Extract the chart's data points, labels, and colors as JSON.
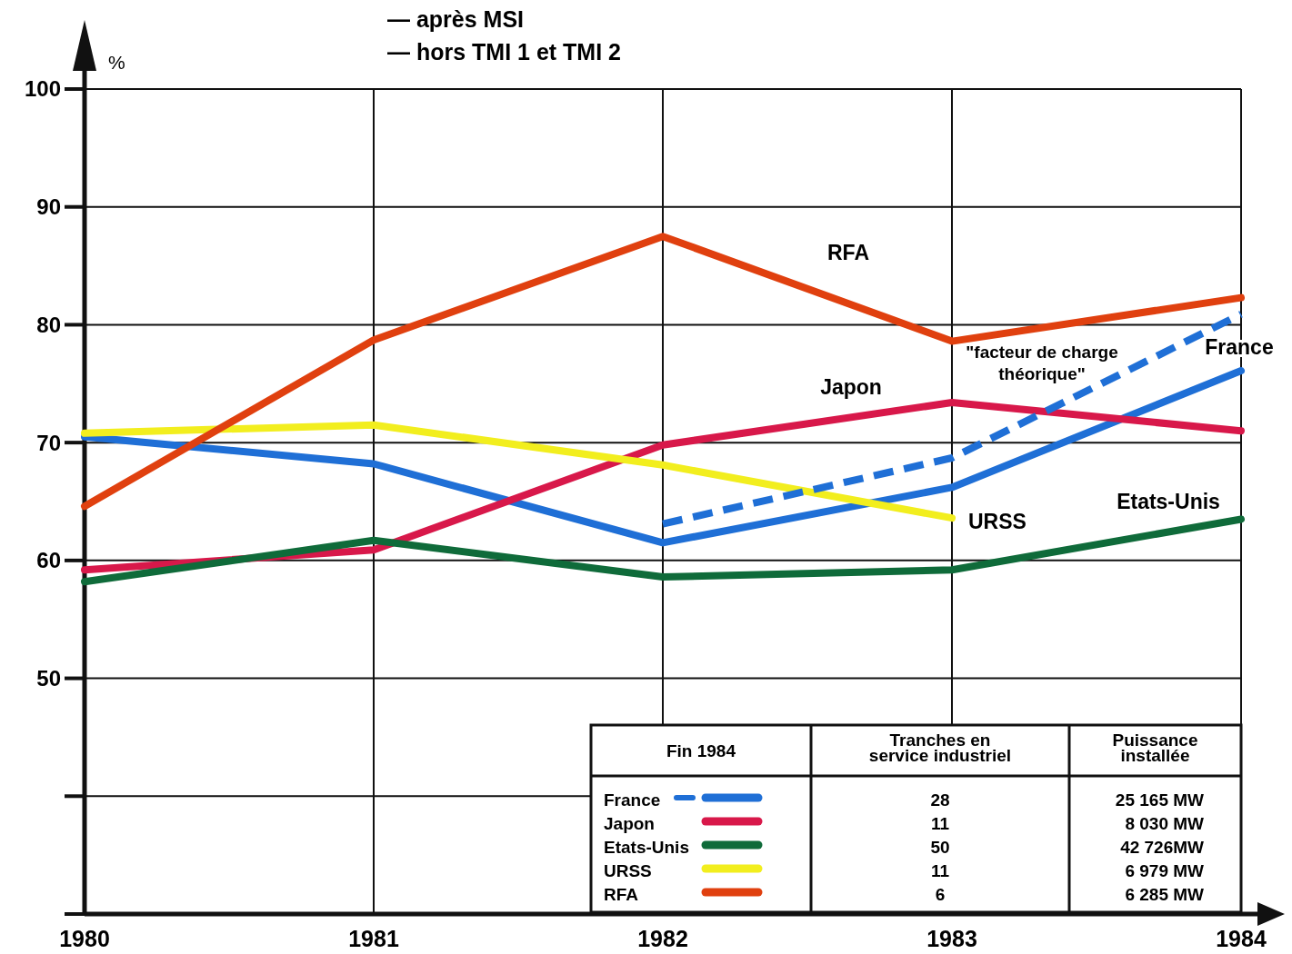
{
  "chart_data": {
    "type": "line",
    "ylabel": "%",
    "x": [
      1980,
      1981,
      1982,
      1983,
      1984
    ],
    "xlim": [
      1980,
      1984
    ],
    "xticks": [
      1980,
      1981,
      1982,
      1983,
      1984
    ],
    "ylim": [
      30,
      100
    ],
    "yticks": [
      {
        "value": 30,
        "label": null
      },
      {
        "value": 40,
        "label": null
      },
      50,
      60,
      70,
      80,
      90,
      100
    ],
    "grid": true,
    "legend": "bottom right",
    "series": [
      {
        "name": "France",
        "color": "#1f6fd6",
        "values": [
          70.5,
          68.2,
          61.5,
          66.2,
          76.1
        ]
      },
      {
        "name": "Japon",
        "color": "#d8184a",
        "values": [
          59.2,
          60.9,
          69.8,
          73.4,
          71.0
        ]
      },
      {
        "name": "Etats-Unis",
        "color": "#0f6b3a",
        "values": [
          58.2,
          61.7,
          58.6,
          59.2,
          63.5
        ]
      },
      {
        "name": "URSS",
        "color": "#f2ee1e",
        "values": [
          70.8,
          71.5,
          68.1,
          63.6,
          null
        ]
      },
      {
        "name": "RFA",
        "color": "#e0400f",
        "values": [
          64.6,
          78.7,
          87.5,
          78.6,
          82.3
        ]
      },
      {
        "name": "\"facteur de charge\nthéorique\"",
        "color": "#1f6fd6",
        "line_style": "dashed",
        "values": [
          null,
          null,
          63.1,
          68.7,
          80.9
        ]
      }
    ],
    "annotations": [
      "— après MSI",
      "— hors TMI 1 et TMI 2",
      "Fin 1984",
      "Tranches en\nservice industriel",
      "Puissance\ninstallée",
      "28",
      "25 165 MW",
      "11",
      "8 030 MW",
      "50",
      "42 726MW",
      "11",
      "6 979 MW",
      "6",
      "6 285 MW"
    ]
  }
}
